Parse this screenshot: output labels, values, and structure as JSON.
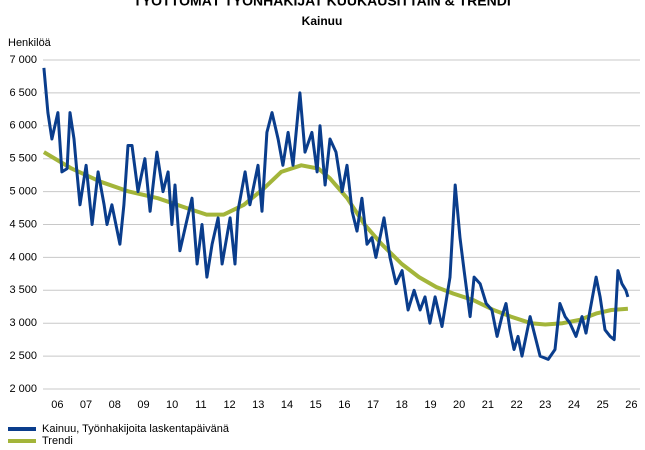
{
  "chart_data": {
    "type": "line",
    "title": "TYÖTTÖMÄT TYÖNHAKIJAT KUUKAUSITTAIN & TRENDI",
    "subtitle": "Kainuu",
    "y_label": "Henkilöä",
    "xlim": [
      5.5,
      26.3
    ],
    "ylim": [
      2000,
      7000
    ],
    "grid": true,
    "legend": "bottom-left",
    "xticks": [
      {
        "value": 6,
        "label": "06"
      },
      {
        "value": 7,
        "label": "07"
      },
      {
        "value": 8,
        "label": "08"
      },
      {
        "value": 9,
        "label": "09"
      },
      {
        "value": 10,
        "label": "10"
      },
      {
        "value": 11,
        "label": "11"
      },
      {
        "value": 12,
        "label": "12"
      },
      {
        "value": 13,
        "label": "13"
      },
      {
        "value": 14,
        "label": "14"
      },
      {
        "value": 15,
        "label": "15"
      },
      {
        "value": 16,
        "label": "16"
      },
      {
        "value": 17,
        "label": "17"
      },
      {
        "value": 18,
        "label": "18"
      },
      {
        "value": 19,
        "label": "19"
      },
      {
        "value": 20,
        "label": "20"
      },
      {
        "value": 21,
        "label": "21"
      },
      {
        "value": 22,
        "label": "22"
      },
      {
        "value": 23,
        "label": "23"
      },
      {
        "value": 24,
        "label": "24"
      },
      {
        "value": 25,
        "label": "25"
      },
      {
        "value": 26,
        "label": "26"
      }
    ],
    "yticks": [
      {
        "value": 2000,
        "label": "2 000"
      },
      {
        "value": 2500,
        "label": "2 500"
      },
      {
        "value": 3000,
        "label": "3 000"
      },
      {
        "value": 3500,
        "label": "3 500"
      },
      {
        "value": 4000,
        "label": "4 000"
      },
      {
        "value": 4500,
        "label": "4 500"
      },
      {
        "value": 5000,
        "label": "5 000"
      },
      {
        "value": 5500,
        "label": "5 500"
      },
      {
        "value": 6000,
        "label": "6 000"
      },
      {
        "value": 6500,
        "label": "6 500"
      },
      {
        "value": 7000,
        "label": "7 000"
      }
    ],
    "series": [
      {
        "name": "Kainuu, Työnhakijoita laskentapäivänä",
        "color": "#0a3d8c",
        "x": [
          5.53,
          5.67,
          5.81,
          6.02,
          6.16,
          6.34,
          6.44,
          6.58,
          6.68,
          6.79,
          7.0,
          7.21,
          7.42,
          7.63,
          7.73,
          7.9,
          8.18,
          8.32,
          8.46,
          8.6,
          8.81,
          9.05,
          9.23,
          9.47,
          9.68,
          9.86,
          9.99,
          10.1,
          10.27,
          10.48,
          10.69,
          10.87,
          11.04,
          11.21,
          11.39,
          11.6,
          11.74,
          12.02,
          12.19,
          12.29,
          12.54,
          12.71,
          12.99,
          13.13,
          13.3,
          13.48,
          13.69,
          13.86,
          14.04,
          14.21,
          14.45,
          14.63,
          14.87,
          15.05,
          15.15,
          15.33,
          15.5,
          15.71,
          15.92,
          16.09,
          16.27,
          16.44,
          16.61,
          16.79,
          16.96,
          17.1,
          17.38,
          17.59,
          17.8,
          18.01,
          18.22,
          18.43,
          18.64,
          18.81,
          18.98,
          19.16,
          19.4,
          19.68,
          19.86,
          20.03,
          20.17,
          20.38,
          20.52,
          20.73,
          20.94,
          21.14,
          21.32,
          21.49,
          21.63,
          21.77,
          21.91,
          22.05,
          22.19,
          22.47,
          22.82,
          23.1,
          23.34,
          23.51,
          23.69,
          23.86,
          24.07,
          24.28,
          24.42,
          24.56,
          24.77,
          24.91,
          25.08,
          25.26,
          25.4,
          25.53,
          25.67,
          25.81,
          25.88
        ],
        "values": [
          6880,
          6200,
          5800,
          6200,
          5300,
          5350,
          6200,
          5800,
          5300,
          4800,
          5400,
          4500,
          5300,
          4800,
          4500,
          4800,
          4200,
          4800,
          5700,
          5700,
          5000,
          5500,
          4700,
          5600,
          5000,
          5300,
          4500,
          5100,
          4100,
          4500,
          4900,
          3900,
          4500,
          3700,
          4200,
          4600,
          3900,
          4600,
          3900,
          4700,
          5300,
          4800,
          5400,
          4700,
          5900,
          6200,
          5800,
          5400,
          5900,
          5400,
          6500,
          5600,
          5900,
          5300,
          6000,
          5100,
          5800,
          5600,
          5000,
          5400,
          4700,
          4400,
          4900,
          4200,
          4300,
          4000,
          4600,
          4000,
          3600,
          3800,
          3200,
          3500,
          3200,
          3400,
          3000,
          3400,
          2950,
          3700,
          5100,
          4300,
          3800,
          3100,
          3700,
          3600,
          3300,
          3200,
          2800,
          3100,
          3300,
          2900,
          2600,
          2800,
          2500,
          3100,
          2500,
          2450,
          2600,
          3300,
          3100,
          3000,
          2800,
          3100,
          2850,
          3200,
          3700,
          3400,
          2900,
          2800,
          2750,
          3800,
          3600,
          3500,
          3400
        ]
      },
      {
        "name": "Trendi",
        "color": "#a3b53a",
        "x": [
          5.53,
          6.5,
          7.5,
          8.5,
          9.5,
          10.5,
          11.2,
          11.8,
          12.5,
          13.2,
          13.8,
          14.5,
          15.1,
          15.5,
          16.1,
          16.7,
          17.3,
          18.0,
          18.6,
          19.2,
          19.8,
          20.5,
          21.2,
          21.8,
          22.5,
          23.0,
          23.6,
          24.2,
          24.8,
          25.3,
          25.88
        ],
        "values": [
          5600,
          5350,
          5150,
          5000,
          4900,
          4750,
          4650,
          4650,
          4800,
          5050,
          5300,
          5400,
          5350,
          5200,
          4900,
          4500,
          4200,
          3900,
          3700,
          3550,
          3450,
          3350,
          3200,
          3100,
          3000,
          2980,
          3000,
          3050,
          3150,
          3200,
          3220
        ]
      }
    ]
  }
}
